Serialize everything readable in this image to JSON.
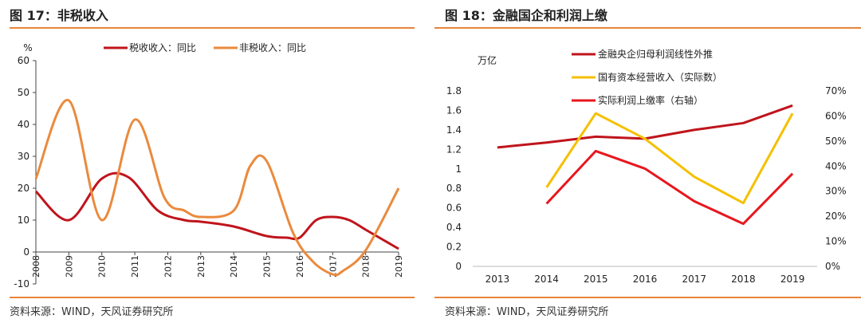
{
  "chart_data": [
    {
      "type": "line",
      "title": "图 17：非税收入",
      "ylabel": "%",
      "ylim": [
        -10,
        60
      ],
      "yticks": [
        "-10",
        "0",
        "10",
        "20",
        "30",
        "40",
        "50",
        "60"
      ],
      "categories": [
        "2008",
        "2009",
        "2010",
        "2011",
        "2012",
        "2013",
        "2014",
        "2015",
        "2016",
        "2017",
        "2018",
        "2019"
      ],
      "series": [
        {
          "name": "税收收入：同比",
          "color": "#c0141c",
          "points": [
            [
              2008,
              19
            ],
            [
              2009,
              10
            ],
            [
              2010,
              23
            ],
            [
              2010.8,
              23.5
            ],
            [
              2011.7,
              13
            ],
            [
              2012.5,
              10
            ],
            [
              2013,
              9.5
            ],
            [
              2014,
              8
            ],
            [
              2015,
              5
            ],
            [
              2015.6,
              4.5
            ],
            [
              2016,
              4.5
            ],
            [
              2016.5,
              10
            ],
            [
              2017,
              11
            ],
            [
              2017.5,
              10
            ],
            [
              2018,
              7
            ],
            [
              2018.5,
              4
            ],
            [
              2019,
              1
            ]
          ]
        },
        {
          "name": "非税收入：同比",
          "color": "#ea8a3d",
          "points": [
            [
              2008,
              23
            ],
            [
              2009,
              47.5
            ],
            [
              2010,
              10
            ],
            [
              2011,
              41.5
            ],
            [
              2011.9,
              17
            ],
            [
              2012.5,
              13
            ],
            [
              2013,
              11
            ],
            [
              2014,
              13
            ],
            [
              2014.5,
              27
            ],
            [
              2015,
              28.5
            ],
            [
              2015.8,
              6
            ],
            [
              2016.4,
              -3
            ],
            [
              2017,
              -7
            ],
            [
              2017.3,
              -6
            ],
            [
              2018,
              0.5
            ],
            [
              2019,
              20
            ]
          ]
        }
      ],
      "legend": "top",
      "source": "资料来源：WIND，天风证券研究所"
    },
    {
      "type": "line",
      "title": "图 18：金融国企和利润上缴",
      "ylabel": "万亿",
      "ylim": [
        0,
        1.8
      ],
      "yticks": [
        "0",
        "0.2",
        "0.4",
        "0.6",
        "0.8",
        "1",
        "1.2",
        "1.4",
        "1.6",
        "1.8"
      ],
      "y2lim": [
        0,
        0.7
      ],
      "y2ticks": [
        "0%",
        "10%",
        "20%",
        "30%",
        "40%",
        "50%",
        "60%",
        "70%"
      ],
      "categories": [
        "2013",
        "2014",
        "2015",
        "2016",
        "2017",
        "2018",
        "2019"
      ],
      "series": [
        {
          "name": "金融央企归母利润线性外推",
          "color": "#c0141c",
          "axis": "left",
          "values": [
            1.22,
            1.27,
            1.33,
            1.31,
            1.4,
            1.47,
            1.65
          ]
        },
        {
          "name": "国有资本经营收入（实际数）",
          "color": "#f5c000",
          "axis": "left",
          "values": [
            null,
            0.81,
            1.57,
            1.31,
            0.92,
            0.65,
            1.57
          ]
        },
        {
          "name": "实际利润上缴率（右轴）",
          "color": "#e8171e",
          "axis": "right",
          "values": [
            null,
            0.25,
            0.46,
            0.39,
            0.26,
            0.17,
            0.37
          ]
        }
      ],
      "legend": "top-left",
      "source": "资料来源：WIND，天风证券研究所"
    }
  ]
}
